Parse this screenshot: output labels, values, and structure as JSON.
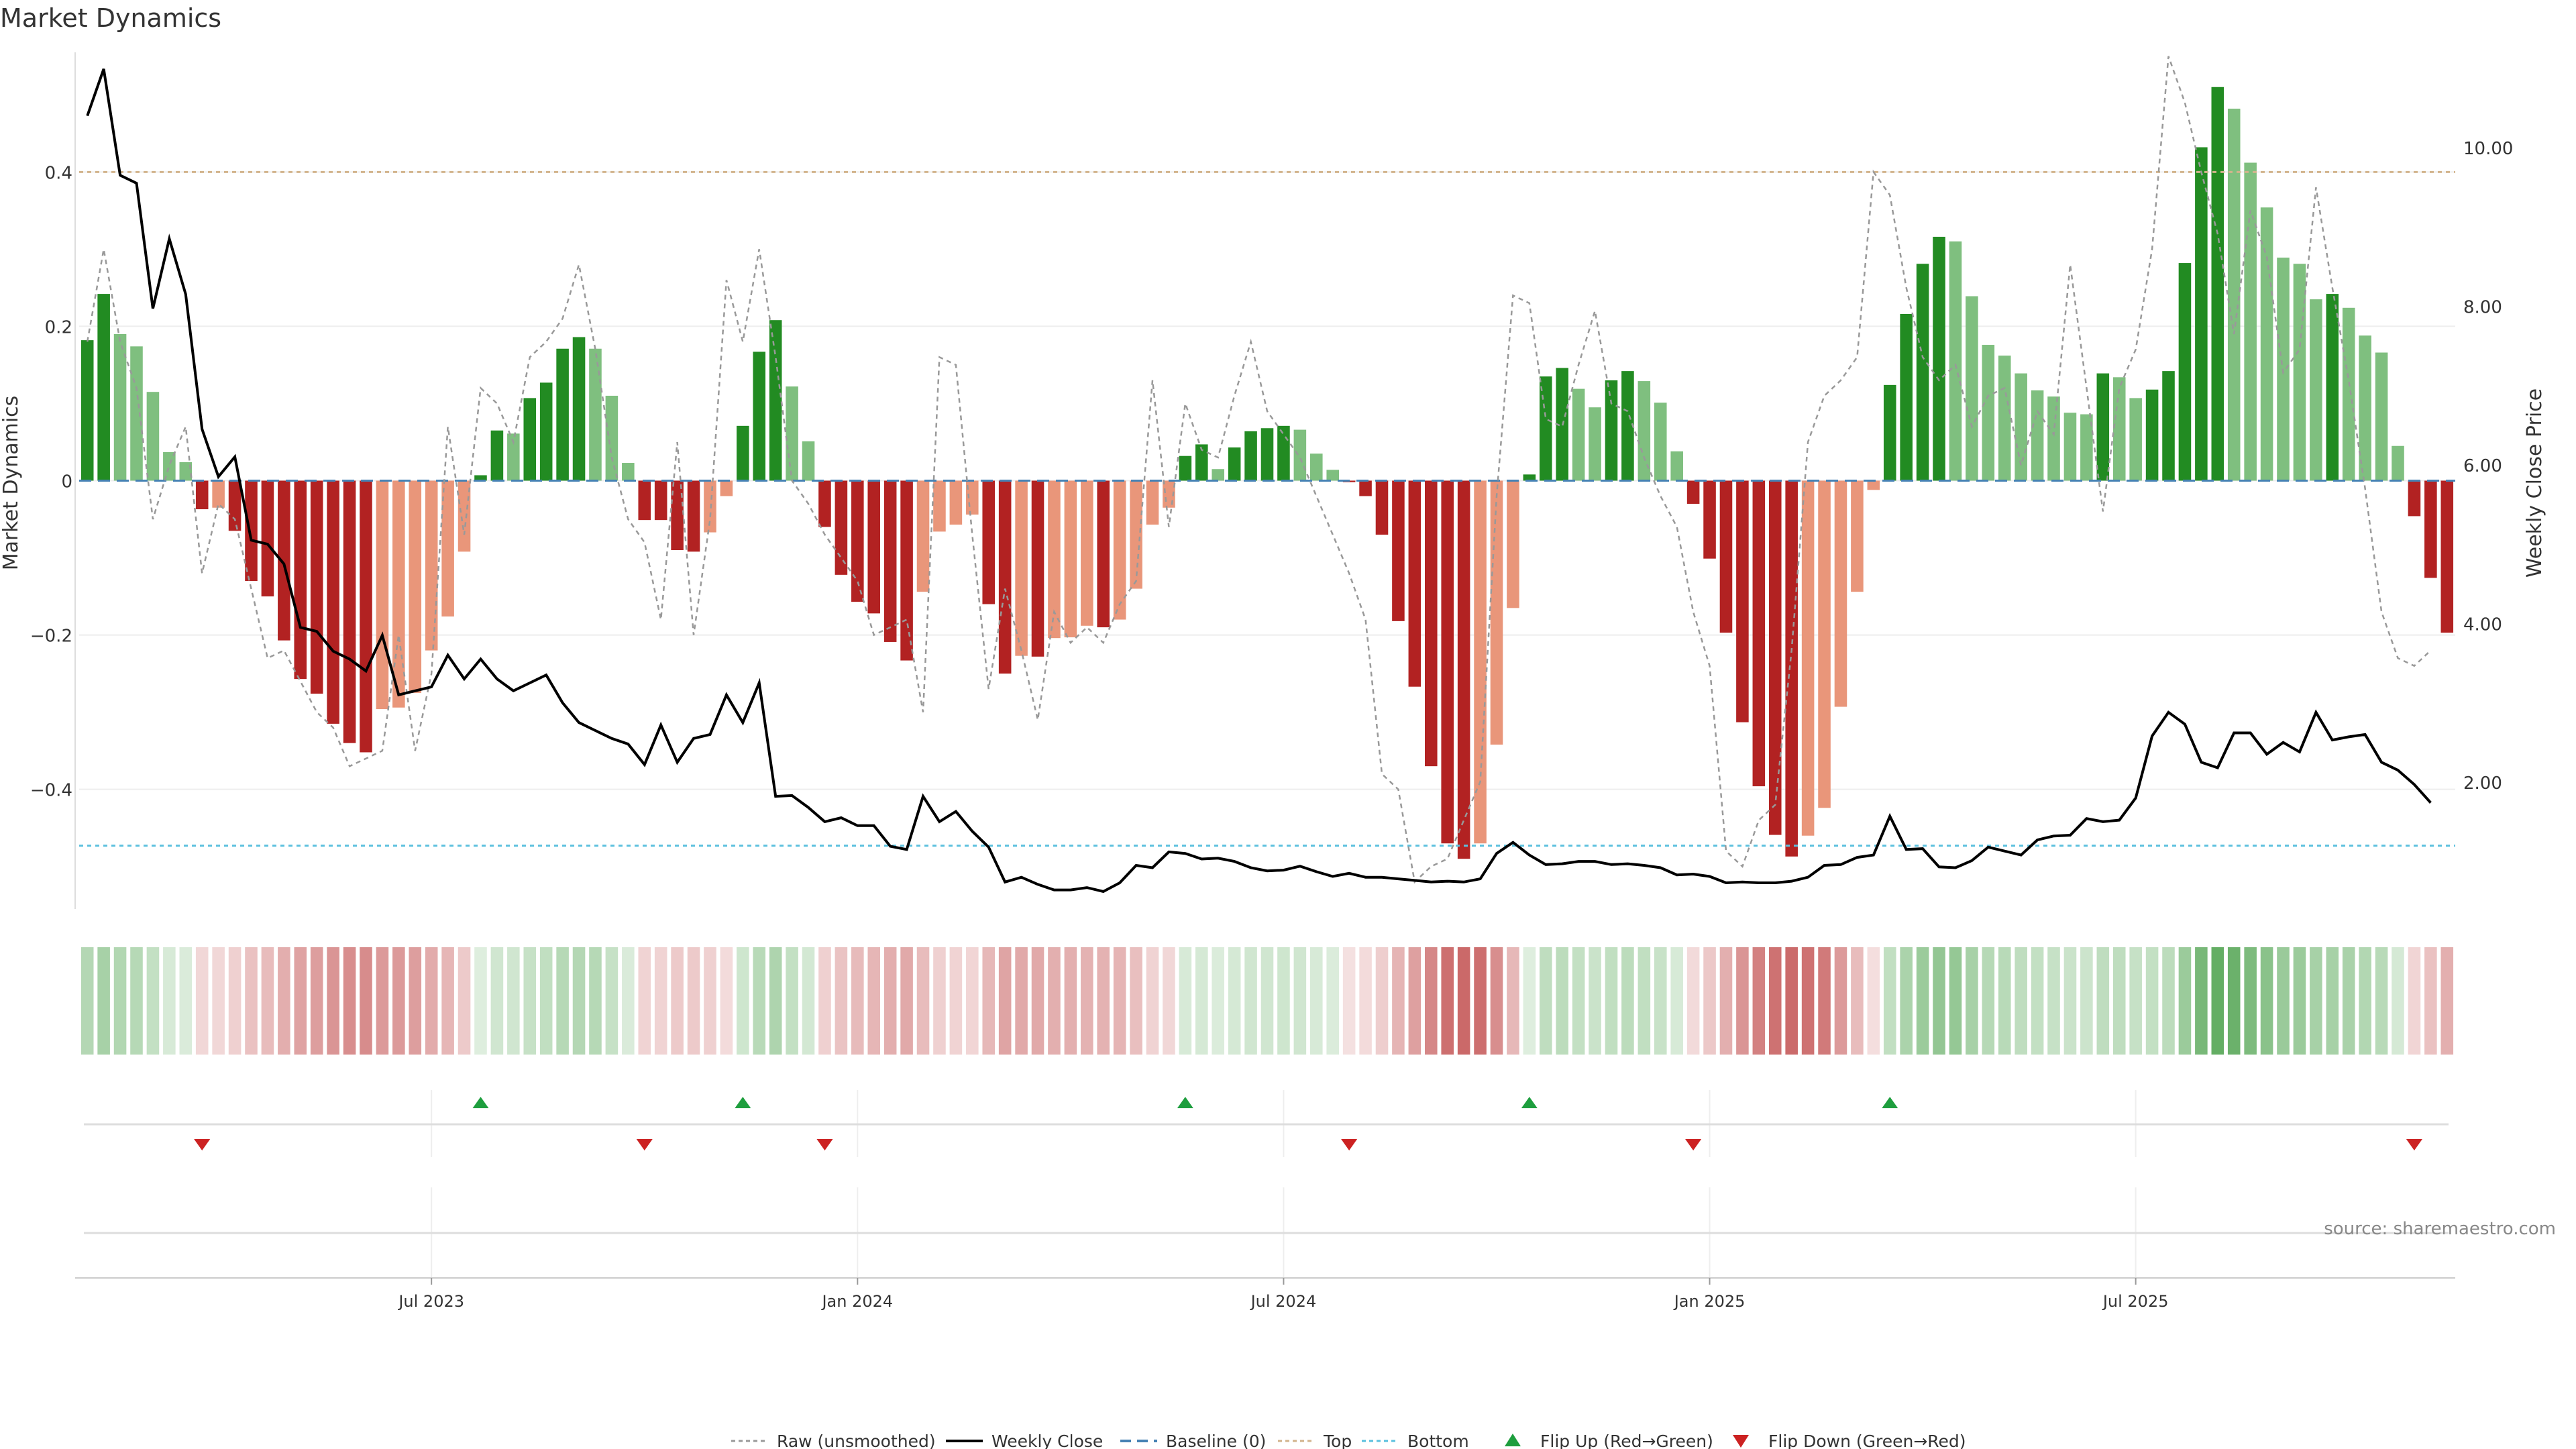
{
  "chart_data": {
    "type": "bar",
    "title": "Market Dynamics",
    "ylabel_left": "Market Dynamics",
    "ylabel_right": "Weekly Close Price",
    "source": "source: sharemaestro.com",
    "y_left_ticks": [
      "0.4",
      "0.2",
      "0",
      "−0.2",
      "−0.4"
    ],
    "y_left_tick_values": [
      0.4,
      0.2,
      0,
      -0.2,
      -0.4
    ],
    "y_right_ticks": [
      "10.00",
      "8.00",
      "6.00",
      "4.00",
      "2.00"
    ],
    "y_right_tick_values": [
      10,
      8,
      6,
      4,
      2
    ],
    "ylim_left": [
      -0.555,
      0.555
    ],
    "ylim_right": [
      0.4,
      11.2
    ],
    "x_ticks": [
      "Jul 2023",
      "Jan 2024",
      "Jul 2024",
      "Jan 2025",
      "Jul 2025"
    ],
    "x_tick_index": [
      21,
      47,
      73,
      99,
      125
    ],
    "top_threshold": 0.4,
    "bottom_threshold": -0.473,
    "legend": [
      {
        "key": "raw",
        "label": "Raw (unsmoothed)"
      },
      {
        "key": "close",
        "label": "Weekly Close"
      },
      {
        "key": "baseline",
        "label": "Baseline (0)"
      },
      {
        "key": "top",
        "label": "Top"
      },
      {
        "key": "bottom",
        "label": "Bottom"
      },
      {
        "key": "flip_up",
        "label": "Flip Up (Red→Green)"
      },
      {
        "key": "flip_down",
        "label": "Flip Down (Green→Red)"
      }
    ],
    "colors": {
      "strong_green": "#228B22",
      "light_green": "#7FBF7F",
      "strong_red": "#B22222",
      "light_red": "#E9967A",
      "close": "#000000",
      "raw": "#999999",
      "baseline": "#4682B4",
      "top": "#D2B48C",
      "bottom": "#5BC0DE",
      "flip_up": "#1E9E3E",
      "flip_down": "#CC2222"
    },
    "series": [
      {
        "name": "Market Dynamics",
        "values": [
          0.182,
          0.242,
          0.19,
          0.174,
          0.115,
          0.037,
          0.024,
          -0.037,
          -0.035,
          -0.065,
          -0.13,
          -0.15,
          -0.207,
          -0.257,
          -0.276,
          -0.315,
          -0.34,
          -0.352,
          -0.296,
          -0.294,
          -0.275,
          -0.22,
          -0.176,
          -0.092,
          0.007,
          0.065,
          0.061,
          0.107,
          0.127,
          0.171,
          0.186,
          0.171,
          0.11,
          0.023,
          -0.051,
          -0.051,
          -0.09,
          -0.092,
          -0.067,
          -0.02,
          0.071,
          0.167,
          0.208,
          0.122,
          0.051,
          -0.06,
          -0.122,
          -0.157,
          -0.172,
          -0.209,
          -0.233,
          -0.144,
          -0.066,
          -0.057,
          -0.044,
          -0.16,
          -0.25,
          -0.227,
          -0.228,
          -0.204,
          -0.203,
          -0.188,
          -0.19,
          -0.18,
          -0.14,
          -0.057,
          -0.035,
          0.032,
          0.047,
          0.015,
          0.043,
          0.064,
          0.068,
          0.071,
          0.066,
          0.035,
          0.014,
          -0.002,
          -0.02,
          -0.07,
          -0.182,
          -0.267,
          -0.37,
          -0.47,
          -0.49,
          -0.47,
          -0.342,
          -0.165,
          0.008,
          0.135,
          0.146,
          0.119,
          0.095,
          0.13,
          0.142,
          0.129,
          0.101,
          0.038,
          -0.03,
          -0.101,
          -0.197,
          -0.313,
          -0.396,
          -0.459,
          -0.487,
          -0.46,
          -0.424,
          -0.293,
          -0.144,
          -0.012,
          0.124,
          0.216,
          0.281,
          0.316,
          0.31,
          0.239,
          0.176,
          0.162,
          0.139,
          0.117,
          0.109,
          0.088,
          0.086,
          0.139,
          0.134,
          0.107,
          0.118,
          0.142,
          0.282,
          0.432,
          0.51,
          0.482,
          0.412,
          0.354,
          0.289,
          0.281,
          0.235,
          0.242,
          0.224,
          0.188,
          0.166,
          0.045,
          -0.046,
          -0.126,
          -0.197
        ]
      },
      {
        "name": "Weekly Close",
        "values": [
          10.4,
          10.99,
          9.65,
          9.55,
          7.97,
          8.85,
          8.15,
          6.45,
          5.85,
          6.1,
          5.05,
          5.0,
          4.75,
          3.95,
          3.9,
          3.65,
          3.55,
          3.4,
          3.85,
          3.1,
          3.15,
          3.2,
          3.6,
          3.3,
          3.55,
          3.3,
          3.15,
          3.25,
          3.35,
          3.0,
          2.75,
          2.65,
          2.55,
          2.48,
          2.22,
          2.72,
          2.25,
          2.55,
          2.6,
          3.1,
          2.75,
          3.25,
          1.82,
          1.83,
          1.68,
          1.5,
          1.55,
          1.45,
          1.45,
          1.19,
          1.15,
          1.82,
          1.5,
          1.63,
          1.38,
          1.18,
          0.74,
          0.8,
          0.71,
          0.64,
          0.64,
          0.67,
          0.62,
          0.73,
          0.95,
          0.92,
          1.12,
          1.1,
          1.03,
          1.04,
          1.0,
          0.92,
          0.88,
          0.89,
          0.94,
          0.87,
          0.81,
          0.85,
          0.8,
          0.8,
          0.78,
          0.76,
          0.74,
          0.75,
          0.74,
          0.78,
          1.1,
          1.24,
          1.08,
          0.96,
          0.97,
          1.0,
          1.0,
          0.96,
          0.97,
          0.95,
          0.92,
          0.83,
          0.84,
          0.81,
          0.73,
          0.74,
          0.73,
          0.73,
          0.75,
          0.8,
          0.95,
          0.96,
          1.05,
          1.08,
          1.57,
          1.15,
          1.16,
          0.93,
          0.92,
          1.01,
          1.18,
          1.13,
          1.08,
          1.27,
          1.32,
          1.33,
          1.54,
          1.5,
          1.52,
          1.8,
          2.58,
          2.88,
          2.73,
          2.25,
          2.18,
          2.62,
          2.62,
          2.35,
          2.5,
          2.38,
          2.88,
          2.53,
          2.57,
          2.6,
          2.25,
          2.15,
          1.97,
          1.74
        ]
      },
      {
        "name": "Raw (unsmoothed)",
        "values": [
          0.18,
          0.3,
          0.18,
          0.12,
          -0.05,
          0.02,
          0.07,
          -0.12,
          -0.03,
          -0.05,
          -0.14,
          -0.23,
          -0.22,
          -0.26,
          -0.3,
          -0.32,
          -0.37,
          -0.36,
          -0.35,
          -0.2,
          -0.35,
          -0.25,
          0.07,
          -0.07,
          0.12,
          0.1,
          0.05,
          0.16,
          0.18,
          0.21,
          0.28,
          0.17,
          0.03,
          -0.05,
          -0.08,
          -0.18,
          0.05,
          -0.2,
          -0.05,
          0.26,
          0.18,
          0.3,
          0.16,
          0.0,
          -0.03,
          -0.07,
          -0.1,
          -0.13,
          -0.2,
          -0.19,
          -0.18,
          -0.3,
          0.16,
          0.15,
          -0.07,
          -0.27,
          -0.14,
          -0.22,
          -0.31,
          -0.17,
          -0.21,
          -0.19,
          -0.21,
          -0.16,
          -0.13,
          0.13,
          -0.06,
          0.1,
          0.04,
          0.03,
          0.11,
          0.18,
          0.09,
          0.06,
          0.03,
          -0.02,
          -0.07,
          -0.12,
          -0.18,
          -0.38,
          -0.4,
          -0.52,
          -0.5,
          -0.49,
          -0.44,
          -0.39,
          -0.02,
          0.24,
          0.23,
          0.08,
          0.07,
          0.15,
          0.22,
          0.1,
          0.09,
          0.03,
          -0.02,
          -0.06,
          -0.17,
          -0.24,
          -0.48,
          -0.5,
          -0.44,
          -0.42,
          -0.22,
          0.05,
          0.11,
          0.13,
          0.16,
          0.4,
          0.37,
          0.25,
          0.16,
          0.13,
          0.15,
          0.07,
          0.11,
          0.12,
          0.02,
          0.09,
          0.06,
          0.28,
          0.12,
          -0.04,
          0.12,
          0.17,
          0.3,
          0.55,
          0.49,
          0.4,
          0.32,
          0.19,
          0.35,
          0.29,
          0.14,
          0.17,
          0.38,
          0.25,
          0.13,
          -0.01,
          -0.17,
          -0.23,
          -0.24,
          -0.22
        ]
      }
    ]
  }
}
